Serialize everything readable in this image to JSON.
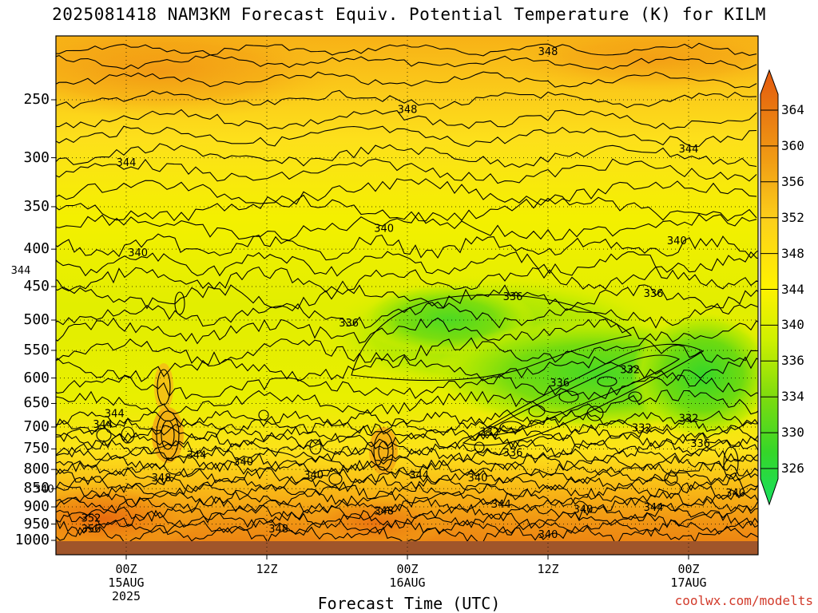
{
  "title": "2025081418 NAM3KM Forecast Equiv. Potential Temperature (K) for KILM",
  "credit": "coolwx.com/modelts",
  "chart_data": {
    "type": "heatmap",
    "title": "2025081418 NAM3KM Forecast Equiv. Potential Temperature (K) for KILM",
    "xlabel": "Forecast Time (UTC)",
    "ylabel": "",
    "y_scale": "log-pressure",
    "y_ticks": [
      250,
      300,
      350,
      400,
      450,
      500,
      550,
      600,
      650,
      700,
      750,
      800,
      850,
      900,
      950,
      1000
    ],
    "x_ticks": [
      {
        "label": "00Z",
        "sub": "15AUG",
        "sub2": "2025",
        "hours": 6
      },
      {
        "label": "12Z",
        "sub": "",
        "sub2": "",
        "hours": 18
      },
      {
        "label": "00Z",
        "sub": "16AUG",
        "sub2": "",
        "hours": 30
      },
      {
        "label": "12Z",
        "sub": "",
        "sub2": "",
        "hours": 42
      },
      {
        "label": "00Z",
        "sub": "17AUG",
        "sub2": "",
        "hours": 54
      }
    ],
    "colorbar": {
      "labels": [
        364,
        360,
        356,
        352,
        348,
        344,
        340,
        336,
        334,
        330,
        326
      ],
      "colors": [
        "#e35a0e",
        "#ea7c10",
        "#f09a14",
        "#f6b318",
        "#fcd11b",
        "#fff200",
        "#d9f200",
        "#a8e600",
        "#6fdb12",
        "#35d629",
        "#18e060"
      ]
    },
    "contour_labels": [
      {
        "text": "348",
        "hours": 42,
        "p": 215
      },
      {
        "text": "348",
        "hours": 30,
        "p": 258
      },
      {
        "text": "344",
        "hours": 6,
        "p": 305
      },
      {
        "text": "344",
        "hours": 54,
        "p": 292
      },
      {
        "text": "340",
        "hours": 28,
        "p": 375
      },
      {
        "text": "340",
        "hours": 53,
        "p": 390
      },
      {
        "text": "340",
        "hours": 7,
        "p": 405
      },
      {
        "text": "344",
        "hours": -3,
        "p": 428
      },
      {
        "text": "336",
        "hours": 39,
        "p": 465
      },
      {
        "text": "336",
        "hours": 51,
        "p": 460
      },
      {
        "text": "336",
        "hours": 25,
        "p": 505
      },
      {
        "text": "332",
        "hours": 49,
        "p": 585
      },
      {
        "text": "336",
        "hours": 43,
        "p": 610
      },
      {
        "text": "344",
        "hours": 5,
        "p": 672
      },
      {
        "text": "344",
        "hours": 4,
        "p": 695
      },
      {
        "text": "332",
        "hours": 54,
        "p": 682
      },
      {
        "text": "332",
        "hours": 50,
        "p": 703
      },
      {
        "text": "332",
        "hours": 37,
        "p": 712
      },
      {
        "text": "336",
        "hours": 55,
        "p": 738
      },
      {
        "text": "336",
        "hours": 39,
        "p": 760
      },
      {
        "text": "344",
        "hours": 12,
        "p": 765
      },
      {
        "text": "340",
        "hours": 16,
        "p": 782
      },
      {
        "text": "340",
        "hours": 22,
        "p": 815
      },
      {
        "text": "344",
        "hours": 31,
        "p": 815
      },
      {
        "text": "340",
        "hours": 36,
        "p": 822
      },
      {
        "text": "348",
        "hours": 9,
        "p": 822
      },
      {
        "text": "340",
        "hours": -1,
        "p": 852
      },
      {
        "text": "340",
        "hours": 58,
        "p": 862
      },
      {
        "text": "344",
        "hours": 38,
        "p": 893
      },
      {
        "text": "348",
        "hours": 28,
        "p": 912
      },
      {
        "text": "340",
        "hours": 45,
        "p": 908
      },
      {
        "text": "344",
        "hours": 51,
        "p": 902
      },
      {
        "text": "352",
        "hours": 3,
        "p": 933
      },
      {
        "text": "356",
        "hours": 3,
        "p": 965
      },
      {
        "text": "348",
        "hours": 19,
        "p": 965
      },
      {
        "text": "340",
        "hours": 42,
        "p": 982
      }
    ]
  }
}
